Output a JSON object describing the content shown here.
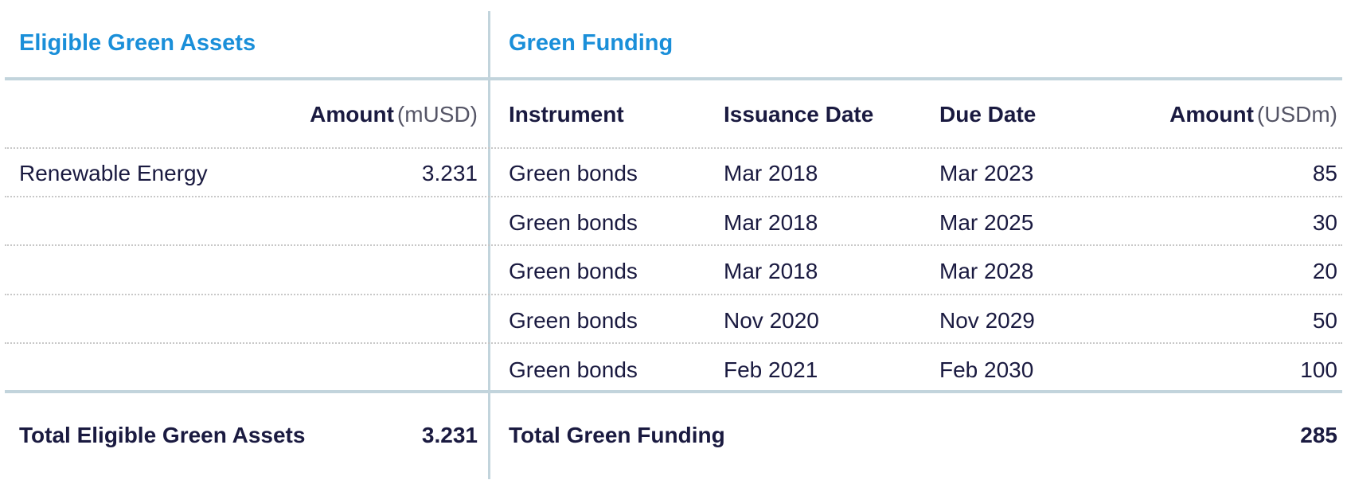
{
  "left": {
    "heading": "Eligible Green Assets",
    "amount_label": "Amount",
    "amount_unit": "(mUSD)",
    "rows": [
      {
        "category": "Renewable Energy",
        "amount": "3.231"
      }
    ],
    "total_label": "Total Eligible Green Assets",
    "total_amount": "3.231"
  },
  "right": {
    "heading": "Green Funding",
    "columns": {
      "instrument": "Instrument",
      "issuance": "Issuance Date",
      "due": "Due Date",
      "amount_label": "Amount",
      "amount_unit": "(USDm)"
    },
    "rows": [
      {
        "instrument": "Green bonds",
        "issuance": "Mar 2018",
        "due": "Mar 2023",
        "amount": "85"
      },
      {
        "instrument": "Green bonds",
        "issuance": "Mar 2018",
        "due": "Mar 2025",
        "amount": "30"
      },
      {
        "instrument": "Green bonds",
        "issuance": "Mar 2018",
        "due": "Mar 2028",
        "amount": "20"
      },
      {
        "instrument": "Green bonds",
        "issuance": "Nov 2020",
        "due": "Nov 2029",
        "amount": "50"
      },
      {
        "instrument": "Green bonds",
        "issuance": "Feb 2021",
        "due": "Feb 2030",
        "amount": "100"
      }
    ],
    "total_label": "Total Green Funding",
    "total_amount": "285"
  },
  "colors": {
    "heading": "#1a8fd9",
    "text": "#1a1a40",
    "rule": "#c2d4dc"
  }
}
